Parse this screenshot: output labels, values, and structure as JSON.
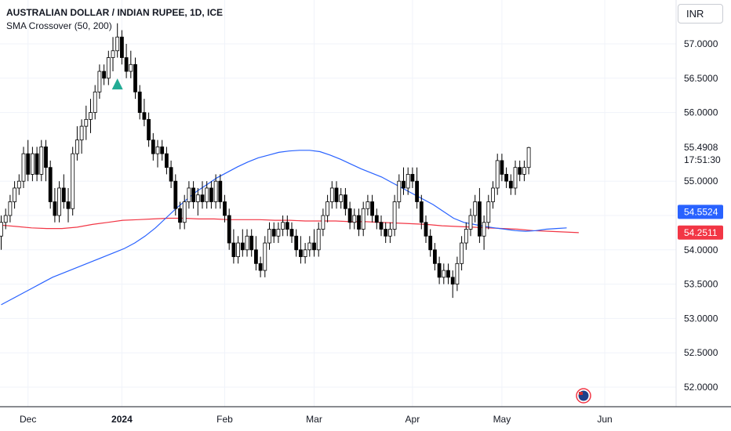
{
  "header": {
    "title": "AUSTRALIAN DOLLAR / INDIAN RUPEE, 1D, ICE",
    "indicator": "SMA Crossover (50, 200)",
    "currency": "INR"
  },
  "colors": {
    "candle": "#000000",
    "sma50": "#2962ff",
    "sma200": "#f23645",
    "signal": "#22ab94",
    "axis_text": "#131722",
    "grid": "#f0f3fa"
  },
  "chart_data": {
    "type": "candlestick",
    "ylim": [
      51.8,
      57.5
    ],
    "yticks": [
      "57.0000",
      "56.5000",
      "56.0000",
      "55.4908",
      "55.0000",
      "54.5000",
      "54.0000",
      "53.5000",
      "53.0000",
      "52.5000",
      "52.0000"
    ],
    "ytick_values": [
      57.0,
      56.5,
      56.0,
      55.4908,
      55.0,
      54.5,
      54.0,
      53.5,
      53.0,
      52.5,
      52.0
    ],
    "xticks": [
      {
        "label": "Dec",
        "bold": false,
        "index": 6
      },
      {
        "label": "2024",
        "bold": true,
        "index": 27
      },
      {
        "label": "Feb",
        "bold": false,
        "index": 50
      },
      {
        "label": "Mar",
        "bold": false,
        "index": 70
      },
      {
        "label": "Apr",
        "bold": false,
        "index": 92
      },
      {
        "label": "May",
        "bold": false,
        "index": 112
      },
      {
        "label": "Jun",
        "bold": false,
        "index": 135
      }
    ],
    "last_price": {
      "value": 55.4908,
      "label": "55.4908",
      "countdown": "17:51:30"
    },
    "sma50_badge": {
      "value": 54.5524,
      "label": "54.5524"
    },
    "sma200_badge": {
      "value": 54.2511,
      "label": "54.2511"
    },
    "candles": [
      [
        54.2,
        54.5,
        54.0,
        54.4
      ],
      [
        54.4,
        54.6,
        54.3,
        54.5
      ],
      [
        54.5,
        54.8,
        54.4,
        54.7
      ],
      [
        54.7,
        55.0,
        54.6,
        54.9
      ],
      [
        54.9,
        55.1,
        54.8,
        55.0
      ],
      [
        55.0,
        55.5,
        54.9,
        55.4
      ],
      [
        55.4,
        55.6,
        55.0,
        55.1
      ],
      [
        55.1,
        55.5,
        55.0,
        55.4
      ],
      [
        55.4,
        55.5,
        55.0,
        55.1
      ],
      [
        55.1,
        55.6,
        55.0,
        55.5
      ],
      [
        55.5,
        55.6,
        55.0,
        55.2
      ],
      [
        55.2,
        55.3,
        54.6,
        54.7
      ],
      [
        54.7,
        54.9,
        54.4,
        54.5
      ],
      [
        54.5,
        55.0,
        54.4,
        54.9
      ],
      [
        54.9,
        55.1,
        54.6,
        54.7
      ],
      [
        54.7,
        54.9,
        54.4,
        54.6
      ],
      [
        54.6,
        55.5,
        54.5,
        55.4
      ],
      [
        55.4,
        55.8,
        55.3,
        55.6
      ],
      [
        55.6,
        55.9,
        55.4,
        55.8
      ],
      [
        55.8,
        56.1,
        55.6,
        55.9
      ],
      [
        55.9,
        56.2,
        55.7,
        56.0
      ],
      [
        56.0,
        56.4,
        55.9,
        56.3
      ],
      [
        56.3,
        56.7,
        56.2,
        56.6
      ],
      [
        56.6,
        56.7,
        56.4,
        56.5
      ],
      [
        56.5,
        56.9,
        56.4,
        56.8
      ],
      [
        56.8,
        57.1,
        56.6,
        56.9
      ],
      [
        56.9,
        57.3,
        56.8,
        57.1
      ],
      [
        57.1,
        57.2,
        56.7,
        56.8
      ],
      [
        56.8,
        57.0,
        56.5,
        56.6
      ],
      [
        56.6,
        56.9,
        56.5,
        56.7
      ],
      [
        56.7,
        56.8,
        56.2,
        56.3
      ],
      [
        56.3,
        56.4,
        55.9,
        56.0
      ],
      [
        56.0,
        56.2,
        55.8,
        55.9
      ],
      [
        55.9,
        56.0,
        55.5,
        55.6
      ],
      [
        55.6,
        55.7,
        55.3,
        55.4
      ],
      [
        55.4,
        55.6,
        55.2,
        55.5
      ],
      [
        55.5,
        55.6,
        55.3,
        55.4
      ],
      [
        55.4,
        55.5,
        55.1,
        55.2
      ],
      [
        55.2,
        55.3,
        54.9,
        55.0
      ],
      [
        55.0,
        55.1,
        54.5,
        54.6
      ],
      [
        54.6,
        54.7,
        54.3,
        54.4
      ],
      [
        54.4,
        54.8,
        54.3,
        54.7
      ],
      [
        54.7,
        55.0,
        54.6,
        54.9
      ],
      [
        54.9,
        55.0,
        54.6,
        54.7
      ],
      [
        54.7,
        54.9,
        54.5,
        54.8
      ],
      [
        54.8,
        55.0,
        54.6,
        54.7
      ],
      [
        54.7,
        55.0,
        54.6,
        54.9
      ],
      [
        54.9,
        55.0,
        54.6,
        54.7
      ],
      [
        54.7,
        55.1,
        54.6,
        55.0
      ],
      [
        55.0,
        55.1,
        54.6,
        54.7
      ],
      [
        54.7,
        54.8,
        54.4,
        54.5
      ],
      [
        54.5,
        54.6,
        54.0,
        54.1
      ],
      [
        54.1,
        54.3,
        53.8,
        53.9
      ],
      [
        53.9,
        54.2,
        53.8,
        54.1
      ],
      [
        54.1,
        54.3,
        53.9,
        54.0
      ],
      [
        54.0,
        54.3,
        53.9,
        54.2
      ],
      [
        54.2,
        54.3,
        53.9,
        54.0
      ],
      [
        54.0,
        54.2,
        53.7,
        53.8
      ],
      [
        53.8,
        53.9,
        53.6,
        53.7
      ],
      [
        53.7,
        54.2,
        53.6,
        54.1
      ],
      [
        54.1,
        54.4,
        54.0,
        54.3
      ],
      [
        54.3,
        54.4,
        54.1,
        54.2
      ],
      [
        54.2,
        54.4,
        54.1,
        54.3
      ],
      [
        54.3,
        54.5,
        54.2,
        54.4
      ],
      [
        54.4,
        54.5,
        54.2,
        54.3
      ],
      [
        54.3,
        54.4,
        54.1,
        54.2
      ],
      [
        54.2,
        54.3,
        53.9,
        54.0
      ],
      [
        54.0,
        54.2,
        53.8,
        53.9
      ],
      [
        53.9,
        54.1,
        53.8,
        54.0
      ],
      [
        54.0,
        54.2,
        53.9,
        54.1
      ],
      [
        54.1,
        54.3,
        53.9,
        54.0
      ],
      [
        54.0,
        54.4,
        53.9,
        54.3
      ],
      [
        54.3,
        54.6,
        54.2,
        54.5
      ],
      [
        54.5,
        54.8,
        54.4,
        54.7
      ],
      [
        54.7,
        55.0,
        54.6,
        54.9
      ],
      [
        54.9,
        55.0,
        54.6,
        54.7
      ],
      [
        54.7,
        54.9,
        54.6,
        54.8
      ],
      [
        54.8,
        54.9,
        54.5,
        54.6
      ],
      [
        54.6,
        54.7,
        54.3,
        54.4
      ],
      [
        54.4,
        54.6,
        54.3,
        54.5
      ],
      [
        54.5,
        54.6,
        54.2,
        54.3
      ],
      [
        54.3,
        54.7,
        54.2,
        54.6
      ],
      [
        54.6,
        54.8,
        54.5,
        54.7
      ],
      [
        54.7,
        54.8,
        54.4,
        54.5
      ],
      [
        54.5,
        54.6,
        54.3,
        54.4
      ],
      [
        54.4,
        54.5,
        54.2,
        54.3
      ],
      [
        54.3,
        54.4,
        54.1,
        54.2
      ],
      [
        54.2,
        54.4,
        54.1,
        54.3
      ],
      [
        54.3,
        54.8,
        54.2,
        54.7
      ],
      [
        54.7,
        55.1,
        54.6,
        55.0
      ],
      [
        55.0,
        55.2,
        54.8,
        54.9
      ],
      [
        54.9,
        55.2,
        54.8,
        55.1
      ],
      [
        55.1,
        55.2,
        54.9,
        55.0
      ],
      [
        55.0,
        55.2,
        54.6,
        54.7
      ],
      [
        54.7,
        54.8,
        54.3,
        54.4
      ],
      [
        54.4,
        54.5,
        54.1,
        54.2
      ],
      [
        54.2,
        54.3,
        53.9,
        54.0
      ],
      [
        54.0,
        54.1,
        53.7,
        53.8
      ],
      [
        53.8,
        53.9,
        53.5,
        53.6
      ],
      [
        53.6,
        53.8,
        53.5,
        53.7
      ],
      [
        53.7,
        53.8,
        53.5,
        53.6
      ],
      [
        53.6,
        53.7,
        53.3,
        53.5
      ],
      [
        53.5,
        53.9,
        53.4,
        53.8
      ],
      [
        53.8,
        54.2,
        53.7,
        54.1
      ],
      [
        54.1,
        54.4,
        54.0,
        54.3
      ],
      [
        54.3,
        54.6,
        54.2,
        54.5
      ],
      [
        54.5,
        54.8,
        54.4,
        54.7
      ],
      [
        54.7,
        54.9,
        54.1,
        54.2
      ],
      [
        54.2,
        54.5,
        54.0,
        54.4
      ],
      [
        54.4,
        54.8,
        54.3,
        54.7
      ],
      [
        54.7,
        55.0,
        54.6,
        54.9
      ],
      [
        54.9,
        55.4,
        54.8,
        55.3
      ],
      [
        55.3,
        55.4,
        55.0,
        55.1
      ],
      [
        55.1,
        55.2,
        54.9,
        55.0
      ],
      [
        55.0,
        55.1,
        54.8,
        54.9
      ],
      [
        54.9,
        55.3,
        54.8,
        55.2
      ],
      [
        55.2,
        55.3,
        55.0,
        55.1
      ],
      [
        55.1,
        55.3,
        55.0,
        55.2
      ],
      [
        55.2,
        55.5,
        55.1,
        55.49
      ]
    ],
    "sma50": [
      53.2,
      53.28,
      53.36,
      53.44,
      53.52,
      53.6,
      53.66,
      53.72,
      53.78,
      53.84,
      53.9,
      53.96,
      54.02,
      54.1,
      54.2,
      54.32,
      54.46,
      54.6,
      54.73,
      54.85,
      54.95,
      55.05,
      55.13,
      55.21,
      55.28,
      55.34,
      55.38,
      55.42,
      55.44,
      55.45,
      55.45,
      55.43,
      55.38,
      55.32,
      55.25,
      55.18,
      55.12,
      55.06,
      54.98,
      54.9,
      54.82,
      54.74,
      54.66,
      54.56,
      54.46,
      54.4,
      54.37,
      54.34,
      54.32,
      54.3,
      54.28,
      54.27,
      54.28,
      54.3,
      54.31,
      54.32
    ],
    "sma200": [
      54.36,
      54.34,
      54.32,
      54.31,
      54.31,
      54.33,
      54.37,
      54.4,
      54.43,
      54.44,
      54.45,
      54.46,
      54.46,
      54.45,
      54.45,
      54.44,
      54.44,
      54.44,
      54.43,
      54.43,
      54.42,
      54.42,
      54.42,
      54.41,
      54.41,
      54.4,
      54.39,
      54.38,
      54.37,
      54.35,
      54.34,
      54.33,
      54.32,
      54.31,
      54.3,
      54.28,
      54.27,
      54.26,
      54.25
    ]
  }
}
